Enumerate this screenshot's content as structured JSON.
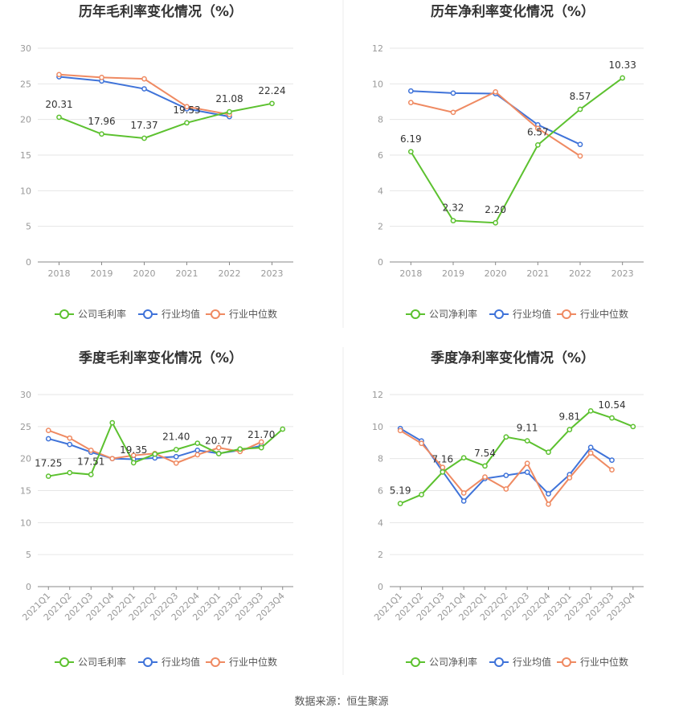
{
  "source_label": "数据来源：恒生聚源",
  "colors": {
    "company": "#5cc12f",
    "mean": "#3f73d9",
    "median": "#ef8a62",
    "grid": "#e6e6e6",
    "axis": "#888888",
    "tick": "#999999"
  },
  "chart_data": [
    {
      "type": "line",
      "title": "历年毛利率变化情况（%）",
      "categories": [
        "2018",
        "2019",
        "2020",
        "2021",
        "2022",
        "2023"
      ],
      "ylim": [
        0,
        30
      ],
      "yticks": [
        0,
        5,
        10,
        15,
        20,
        25,
        30
      ],
      "xlabel_rotate": false,
      "grid": true,
      "legend": "bottom",
      "series": [
        {
          "name": "公司毛利率",
          "color": "#5cc12f",
          "values": [
            20.31,
            17.96,
            17.37,
            19.53,
            21.08,
            22.24
          ],
          "labels": [
            "20.31",
            "17.96",
            "17.37",
            "19.53",
            "21.08",
            "22.24"
          ]
        },
        {
          "name": "行业均值",
          "color": "#3f73d9",
          "values": [
            26.0,
            25.4,
            24.3,
            21.5,
            20.4,
            null
          ],
          "labels": []
        },
        {
          "name": "行业中位数",
          "color": "#ef8a62",
          "values": [
            26.3,
            25.9,
            25.7,
            21.8,
            20.7,
            null
          ],
          "labels": []
        }
      ]
    },
    {
      "type": "line",
      "title": "历年净利率变化情况（%）",
      "categories": [
        "2018",
        "2019",
        "2020",
        "2021",
        "2022",
        "2023"
      ],
      "ylim": [
        0,
        12
      ],
      "yticks": [
        0,
        2,
        4,
        6,
        8,
        10,
        12
      ],
      "xlabel_rotate": false,
      "grid": true,
      "legend": "bottom",
      "series": [
        {
          "name": "公司净利率",
          "color": "#5cc12f",
          "values": [
            6.19,
            2.32,
            2.2,
            6.57,
            8.57,
            10.33
          ],
          "labels": [
            "6.19",
            "2.32",
            "2.20",
            "6.57",
            "8.57",
            "10.33"
          ]
        },
        {
          "name": "行业均值",
          "color": "#3f73d9",
          "values": [
            9.6,
            9.48,
            9.45,
            7.7,
            6.6,
            null
          ],
          "labels": []
        },
        {
          "name": "行业中位数",
          "color": "#ef8a62",
          "values": [
            8.95,
            8.4,
            9.55,
            7.5,
            5.95,
            null
          ],
          "labels": []
        }
      ]
    },
    {
      "type": "line",
      "title": "季度毛利率变化情况（%）",
      "categories": [
        "2021Q1",
        "2021Q2",
        "2021Q3",
        "2021Q4",
        "2022Q1",
        "2022Q2",
        "2022Q3",
        "2022Q4",
        "2023Q1",
        "2023Q2",
        "2023Q3",
        "2023Q4"
      ],
      "ylim": [
        0,
        30
      ],
      "yticks": [
        0,
        5,
        10,
        15,
        20,
        25,
        30
      ],
      "xlabel_rotate": true,
      "grid": true,
      "legend": "bottom",
      "series": [
        {
          "name": "公司毛利率",
          "color": "#5cc12f",
          "values": [
            17.25,
            17.8,
            17.51,
            25.6,
            19.35,
            20.7,
            21.4,
            22.4,
            20.77,
            21.5,
            21.7,
            24.6
          ],
          "labels": [
            "17.25",
            "",
            "17.51",
            "",
            "19.35",
            "",
            "21.40",
            "",
            "20.77",
            "",
            "21.70",
            ""
          ]
        },
        {
          "name": "行业均值",
          "color": "#3f73d9",
          "values": [
            23.1,
            22.2,
            21.0,
            20.0,
            19.9,
            20.1,
            20.3,
            21.3,
            20.8,
            21.3,
            22.0,
            null
          ],
          "labels": []
        },
        {
          "name": "行业中位数",
          "color": "#ef8a62",
          "values": [
            24.4,
            23.2,
            21.3,
            20.0,
            20.5,
            20.8,
            19.3,
            20.6,
            21.7,
            21.1,
            22.6,
            null
          ],
          "labels": []
        }
      ]
    },
    {
      "type": "line",
      "title": "季度净利率变化情况（%）",
      "categories": [
        "2021Q1",
        "2021Q2",
        "2021Q3",
        "2021Q4",
        "2022Q1",
        "2022Q2",
        "2022Q3",
        "2022Q4",
        "2023Q1",
        "2023Q2",
        "2023Q3",
        "2023Q4"
      ],
      "ylim": [
        0,
        12
      ],
      "yticks": [
        0,
        2,
        4,
        6,
        8,
        10,
        12
      ],
      "xlabel_rotate": true,
      "grid": true,
      "legend": "bottom",
      "series": [
        {
          "name": "公司净利率",
          "color": "#5cc12f",
          "values": [
            5.19,
            5.75,
            7.16,
            8.05,
            7.54,
            9.35,
            9.11,
            8.4,
            9.81,
            10.98,
            10.54,
            10.0
          ],
          "labels": [
            "5.19",
            "",
            "7.16",
            "",
            "7.54",
            "",
            "9.11",
            "",
            "9.81",
            "",
            "10.54",
            ""
          ]
        },
        {
          "name": "行业均值",
          "color": "#3f73d9",
          "values": [
            9.88,
            9.1,
            7.2,
            5.35,
            6.75,
            6.95,
            7.15,
            5.8,
            7.0,
            8.7,
            7.9,
            null
          ],
          "labels": []
        },
        {
          "name": "行业中位数",
          "color": "#ef8a62",
          "values": [
            9.75,
            8.95,
            7.45,
            5.85,
            6.85,
            6.1,
            7.7,
            5.15,
            6.8,
            8.35,
            7.3,
            null
          ],
          "labels": []
        }
      ]
    }
  ]
}
